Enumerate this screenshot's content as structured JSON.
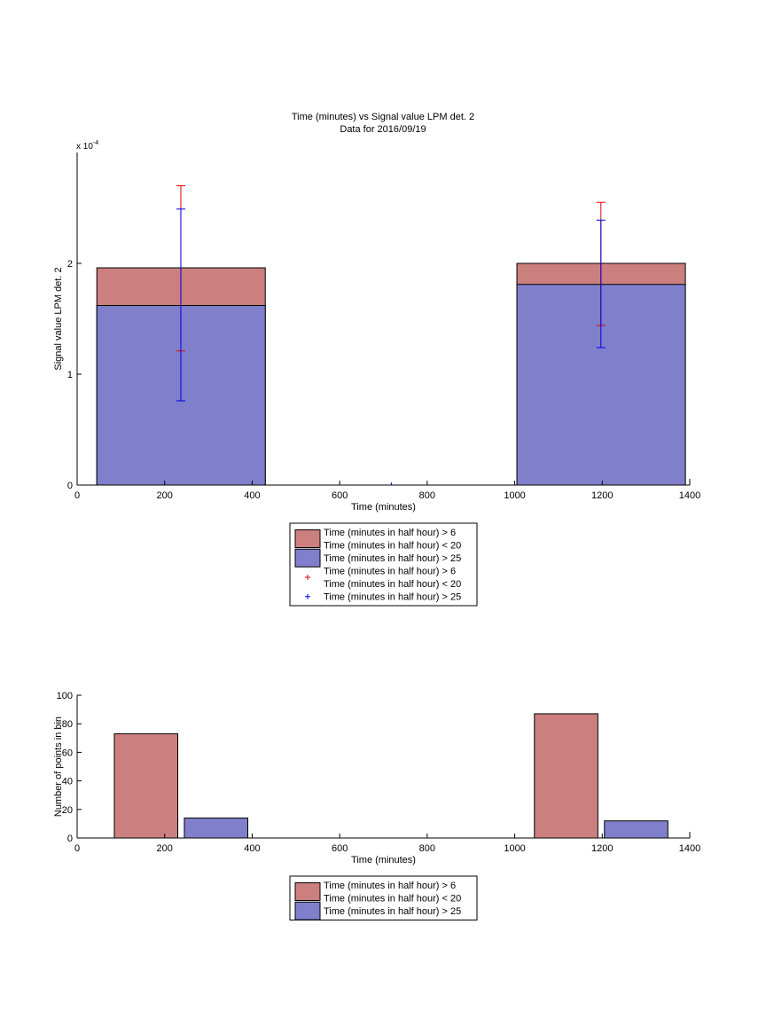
{
  "chart_data": [
    {
      "type": "bar",
      "title": "Time (minutes) vs Signal value LPM det. 2",
      "subtitle": "Data for 2016/09/19",
      "xlabel": "Time (minutes)",
      "ylabel": "Signal value LPM det. 2",
      "y_exponent_label": "x 10",
      "y_exponent_power": "-4",
      "xlim": [
        0,
        1400
      ],
      "ylim": [
        0,
        3.0
      ],
      "xticks": [
        0,
        200,
        400,
        600,
        800,
        1000,
        1200,
        1400
      ],
      "yticks": [
        0,
        1,
        2
      ],
      "grid": false,
      "legend_position": "below",
      "colors": {
        "series1": "#cc7f7f",
        "series2": "#7f7fcc",
        "err1": "#e00000",
        "err2": "#0000e0"
      },
      "bars": [
        {
          "x0": 45,
          "x1": 430,
          "value_series1": 1.96,
          "value_series2": 1.62
        },
        {
          "x0": 1005,
          "x1": 1390,
          "value_series1": 2.0,
          "value_series2": 1.81
        }
      ],
      "errorbars": [
        {
          "series": "series1",
          "x": 237,
          "low": 1.21,
          "high": 2.7
        },
        {
          "series": "series2",
          "x": 237,
          "low": 0.76,
          "high": 2.49
        },
        {
          "series": "series1",
          "x": 1197,
          "low": 1.44,
          "high": 2.55
        },
        {
          "series": "series2",
          "x": 1197,
          "low": 1.24,
          "high": 2.39
        }
      ],
      "extra_points": [
        {
          "x": 718,
          "y": 0
        }
      ],
      "legend": [
        {
          "kind": "patch",
          "color_key": "series1",
          "lines": [
            "Time (minutes in half hour) > 6",
            "Time (minutes in half hour) < 20"
          ]
        },
        {
          "kind": "patch",
          "color_key": "series2",
          "lines": [
            "Time (minutes in half hour) > 25"
          ]
        },
        {
          "kind": "marker",
          "color_key": "err1",
          "lines": [
            "Time (minutes in half hour) > 6",
            "Time (minutes in half hour) < 20"
          ]
        },
        {
          "kind": "marker",
          "color_key": "err2",
          "lines": [
            "Time (minutes in half hour) > 25"
          ]
        }
      ]
    },
    {
      "type": "bar",
      "xlabel": "Time (minutes)",
      "ylabel": "Number of points in bin",
      "xlim": [
        0,
        1400
      ],
      "ylim": [
        0,
        100
      ],
      "xticks": [
        0,
        200,
        400,
        600,
        800,
        1000,
        1200,
        1400
      ],
      "yticks": [
        0,
        20,
        40,
        60,
        80,
        100
      ],
      "grid": false,
      "legend_position": "below",
      "colors": {
        "series1": "#cc7f7f",
        "series2": "#7f7fcc"
      },
      "bars": [
        {
          "series": "series1",
          "x0": 85,
          "x1": 230,
          "value": 73
        },
        {
          "series": "series2",
          "x0": 245,
          "x1": 390,
          "value": 14
        },
        {
          "series": "series1",
          "x0": 1045,
          "x1": 1190,
          "value": 87
        },
        {
          "series": "series2",
          "x0": 1205,
          "x1": 1350,
          "value": 12
        }
      ],
      "legend": [
        {
          "kind": "patch",
          "color_key": "series1",
          "lines": [
            "Time (minutes in half hour) > 6",
            "Time (minutes in half hour) < 20"
          ]
        },
        {
          "kind": "patch",
          "color_key": "series2",
          "lines": [
            "Time (minutes in half hour) > 25"
          ]
        }
      ]
    }
  ]
}
